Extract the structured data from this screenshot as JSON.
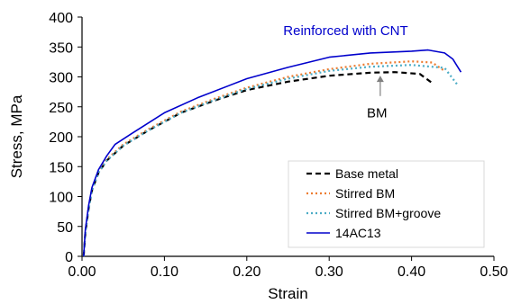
{
  "chart_data": {
    "type": "line",
    "xlabel": "Strain",
    "ylabel": "Stress, MPa",
    "xlim": [
      0,
      0.5
    ],
    "ylim": [
      0,
      400
    ],
    "xticks": [
      "0.00",
      "0.10",
      "0.20",
      "0.30",
      "0.40",
      "0.50"
    ],
    "yticks": [
      "0",
      "50",
      "100",
      "150",
      "200",
      "250",
      "300",
      "350",
      "400"
    ],
    "grid": false,
    "legend_position": "bottom-right",
    "series": [
      {
        "name": "Base metal",
        "color": "#000000",
        "dash": "dashed",
        "points": [
          [
            0.002,
            0
          ],
          [
            0.004,
            40
          ],
          [
            0.008,
            80
          ],
          [
            0.012,
            110
          ],
          [
            0.02,
            140
          ],
          [
            0.03,
            160
          ],
          [
            0.05,
            185
          ],
          [
            0.08,
            210
          ],
          [
            0.12,
            240
          ],
          [
            0.16,
            260
          ],
          [
            0.2,
            278
          ],
          [
            0.25,
            292
          ],
          [
            0.3,
            302
          ],
          [
            0.35,
            307
          ],
          [
            0.38,
            308
          ],
          [
            0.41,
            305
          ],
          [
            0.425,
            290
          ]
        ]
      },
      {
        "name": "Stirred BM",
        "color": "#ED7D31",
        "dash": "dotted",
        "points": [
          [
            0.002,
            0
          ],
          [
            0.004,
            40
          ],
          [
            0.008,
            80
          ],
          [
            0.012,
            112
          ],
          [
            0.02,
            142
          ],
          [
            0.03,
            162
          ],
          [
            0.05,
            187
          ],
          [
            0.08,
            212
          ],
          [
            0.12,
            242
          ],
          [
            0.16,
            263
          ],
          [
            0.2,
            282
          ],
          [
            0.25,
            300
          ],
          [
            0.3,
            313
          ],
          [
            0.35,
            322
          ],
          [
            0.4,
            326
          ],
          [
            0.425,
            324
          ],
          [
            0.44,
            310
          ]
        ]
      },
      {
        "name": "Stirred BM+groove",
        "color": "#4BACC6",
        "dash": "dotted",
        "points": [
          [
            0.002,
            0
          ],
          [
            0.004,
            38
          ],
          [
            0.008,
            78
          ],
          [
            0.012,
            110
          ],
          [
            0.02,
            140
          ],
          [
            0.03,
            160
          ],
          [
            0.05,
            185
          ],
          [
            0.08,
            210
          ],
          [
            0.12,
            240
          ],
          [
            0.16,
            261
          ],
          [
            0.2,
            280
          ],
          [
            0.25,
            297
          ],
          [
            0.3,
            310
          ],
          [
            0.35,
            317
          ],
          [
            0.4,
            320
          ],
          [
            0.44,
            315
          ],
          [
            0.455,
            288
          ]
        ]
      },
      {
        "name": "14AC13",
        "color": "#0000CC",
        "dash": "solid",
        "points": [
          [
            0.002,
            0
          ],
          [
            0.004,
            45
          ],
          [
            0.008,
            85
          ],
          [
            0.012,
            115
          ],
          [
            0.02,
            145
          ],
          [
            0.03,
            168
          ],
          [
            0.04,
            187
          ],
          [
            0.06,
            205
          ],
          [
            0.1,
            240
          ],
          [
            0.14,
            265
          ],
          [
            0.2,
            297
          ],
          [
            0.25,
            316
          ],
          [
            0.3,
            333
          ],
          [
            0.35,
            340
          ],
          [
            0.4,
            343
          ],
          [
            0.42,
            345
          ],
          [
            0.44,
            340
          ],
          [
            0.45,
            330
          ],
          [
            0.46,
            308
          ]
        ]
      }
    ],
    "annotations": [
      {
        "text": "Reinforced with CNT",
        "color": "#0000CC",
        "x": 0.32,
        "y": 370
      },
      {
        "text": "BM",
        "color": "#000000",
        "x": 0.358,
        "y": 232
      }
    ],
    "arrow": {
      "x": 0.362,
      "from_y": 268,
      "to_y": 302,
      "color": "#808080"
    }
  }
}
